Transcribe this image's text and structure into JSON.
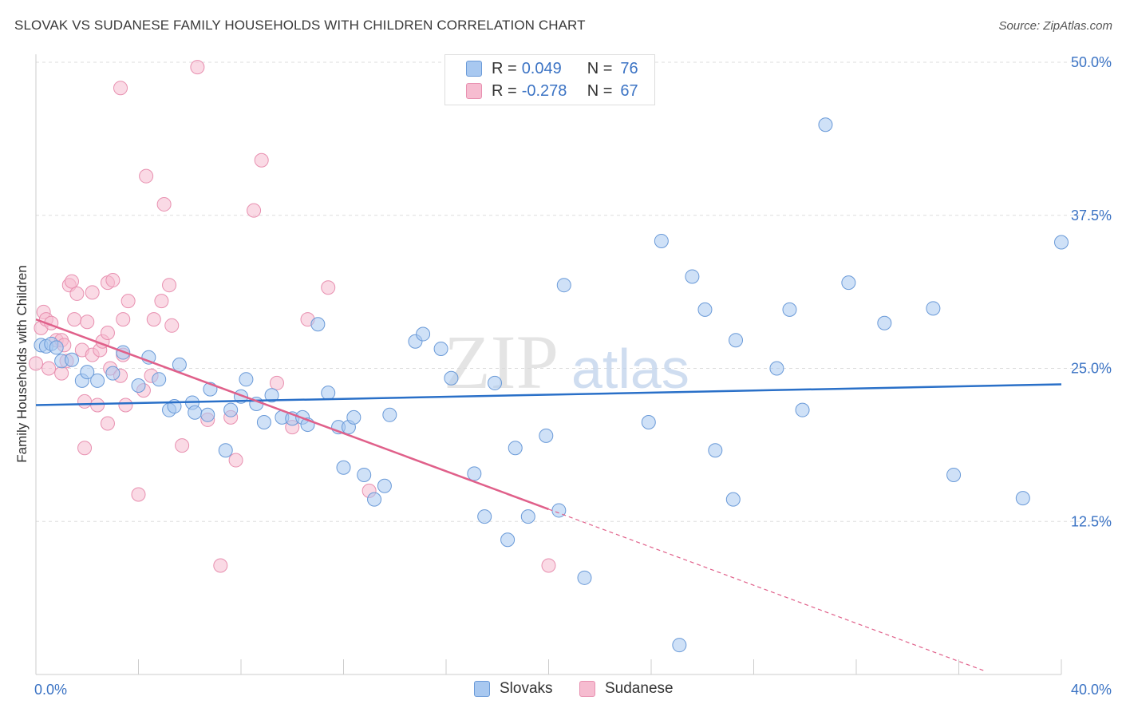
{
  "title": "SLOVAK VS SUDANESE FAMILY HOUSEHOLDS WITH CHILDREN CORRELATION CHART",
  "source": "Source: ZipAtlas.com",
  "watermark": {
    "zip": "ZIP",
    "atlas": "atlas"
  },
  "legend": {
    "slovaks": {
      "r_label": "R =",
      "r_value": "0.049",
      "n_label": "N =",
      "n_value": "76"
    },
    "sudanese": {
      "r_label": "R =",
      "r_value": "-0.278",
      "n_label": "N =",
      "n_value": "67"
    }
  },
  "bottom_legend": {
    "slovaks": "Slovaks",
    "sudanese": "Sudanese"
  },
  "colors": {
    "slovaks_fill": "#a8c8f0",
    "slovaks_stroke": "#6a9ad8",
    "slovaks_line": "#2a70c8",
    "sudanese_fill": "#f6bcd0",
    "sudanese_stroke": "#e890b0",
    "sudanese_line": "#e0608a",
    "grid": "#dddddd",
    "axis_label": "#3b73c4"
  },
  "chart_data": {
    "type": "scatter",
    "title": "SLOVAK VS SUDANESE FAMILY HOUSEHOLDS WITH CHILDREN CORRELATION CHART",
    "xlabel": "",
    "ylabel": "Family Households with Children",
    "xlim": [
      0,
      40
    ],
    "ylim": [
      0,
      50
    ],
    "x_tick_labels": [
      "0.0%",
      "40.0%"
    ],
    "y_ticks": [
      12.5,
      25.0,
      37.5,
      50.0
    ],
    "y_tick_labels": [
      "12.5%",
      "25.0%",
      "37.5%",
      "50.0%"
    ],
    "grid": true,
    "legend_position": "top-center",
    "series": [
      {
        "name": "Slovaks",
        "r": 0.049,
        "n": 76,
        "trend": {
          "x": [
            0,
            40
          ],
          "y": [
            22.0,
            23.7
          ],
          "dashed_from": null
        },
        "points": [
          [
            0.2,
            26.9
          ],
          [
            0.4,
            26.8
          ],
          [
            0.6,
            27.0
          ],
          [
            0.8,
            26.7
          ],
          [
            1.0,
            25.6
          ],
          [
            1.4,
            25.7
          ],
          [
            1.8,
            24.0
          ],
          [
            2.0,
            24.7
          ],
          [
            2.4,
            24.0
          ],
          [
            3.0,
            24.6
          ],
          [
            3.4,
            26.3
          ],
          [
            4.0,
            23.6
          ],
          [
            4.4,
            25.9
          ],
          [
            4.8,
            24.1
          ],
          [
            5.2,
            21.6
          ],
          [
            5.4,
            21.9
          ],
          [
            5.6,
            25.3
          ],
          [
            6.1,
            22.2
          ],
          [
            6.2,
            21.4
          ],
          [
            6.7,
            21.2
          ],
          [
            6.8,
            23.3
          ],
          [
            7.4,
            18.3
          ],
          [
            7.6,
            21.6
          ],
          [
            8.0,
            22.7
          ],
          [
            8.2,
            24.1
          ],
          [
            8.6,
            22.1
          ],
          [
            8.9,
            20.6
          ],
          [
            9.2,
            22.8
          ],
          [
            9.6,
            21.0
          ],
          [
            10.0,
            20.9
          ],
          [
            10.4,
            21.0
          ],
          [
            10.6,
            20.4
          ],
          [
            11.0,
            28.6
          ],
          [
            11.4,
            23.0
          ],
          [
            11.8,
            20.2
          ],
          [
            12.0,
            16.9
          ],
          [
            12.2,
            20.2
          ],
          [
            12.4,
            21.0
          ],
          [
            12.8,
            16.3
          ],
          [
            13.2,
            14.3
          ],
          [
            13.6,
            15.4
          ],
          [
            13.8,
            21.2
          ],
          [
            14.8,
            27.2
          ],
          [
            15.1,
            27.8
          ],
          [
            15.8,
            26.6
          ],
          [
            16.2,
            24.2
          ],
          [
            17.1,
            16.4
          ],
          [
            17.5,
            12.9
          ],
          [
            17.9,
            23.8
          ],
          [
            18.4,
            11.0
          ],
          [
            18.7,
            18.5
          ],
          [
            19.2,
            12.9
          ],
          [
            19.9,
            19.5
          ],
          [
            20.4,
            13.4
          ],
          [
            20.6,
            31.8
          ],
          [
            21.4,
            7.9
          ],
          [
            23.9,
            20.6
          ],
          [
            24.4,
            35.4
          ],
          [
            25.1,
            2.4
          ],
          [
            25.6,
            32.5
          ],
          [
            26.1,
            29.8
          ],
          [
            26.5,
            18.3
          ],
          [
            27.2,
            14.3
          ],
          [
            27.3,
            27.3
          ],
          [
            28.9,
            25.0
          ],
          [
            29.4,
            29.8
          ],
          [
            29.9,
            21.6
          ],
          [
            30.8,
            44.9
          ],
          [
            31.7,
            32.0
          ],
          [
            33.1,
            28.7
          ],
          [
            35.0,
            29.9
          ],
          [
            35.8,
            16.3
          ],
          [
            38.5,
            14.4
          ],
          [
            40.0,
            35.3
          ]
        ]
      },
      {
        "name": "Sudanese",
        "r": -0.278,
        "n": 67,
        "trend": {
          "x": [
            0,
            20
          ],
          "y": [
            29.0,
            13.5
          ],
          "dashed_to": [
            37,
            0.3
          ]
        },
        "points": [
          [
            0.0,
            25.4
          ],
          [
            0.2,
            28.3
          ],
          [
            0.3,
            29.6
          ],
          [
            0.4,
            29.0
          ],
          [
            0.5,
            25.0
          ],
          [
            0.6,
            28.7
          ],
          [
            0.8,
            27.3
          ],
          [
            1.0,
            27.3
          ],
          [
            1.0,
            24.6
          ],
          [
            1.1,
            26.9
          ],
          [
            1.2,
            25.6
          ],
          [
            1.3,
            31.8
          ],
          [
            1.4,
            32.1
          ],
          [
            1.5,
            29.0
          ],
          [
            1.6,
            31.1
          ],
          [
            1.8,
            26.5
          ],
          [
            1.9,
            22.3
          ],
          [
            1.9,
            18.5
          ],
          [
            2.0,
            28.8
          ],
          [
            2.2,
            26.1
          ],
          [
            2.2,
            31.2
          ],
          [
            2.4,
            22.0
          ],
          [
            2.5,
            26.5
          ],
          [
            2.6,
            27.2
          ],
          [
            2.8,
            32.0
          ],
          [
            2.8,
            20.5
          ],
          [
            2.8,
            27.9
          ],
          [
            2.9,
            25.0
          ],
          [
            3.0,
            32.2
          ],
          [
            3.3,
            47.9
          ],
          [
            3.3,
            24.4
          ],
          [
            3.4,
            29.0
          ],
          [
            3.4,
            26.1
          ],
          [
            3.5,
            22.0
          ],
          [
            3.6,
            30.5
          ],
          [
            4.0,
            14.7
          ],
          [
            4.2,
            23.2
          ],
          [
            4.3,
            40.7
          ],
          [
            4.5,
            24.4
          ],
          [
            4.6,
            29.0
          ],
          [
            4.9,
            30.5
          ],
          [
            5.0,
            38.4
          ],
          [
            5.2,
            31.8
          ],
          [
            5.3,
            28.5
          ],
          [
            5.7,
            18.7
          ],
          [
            6.3,
            49.6
          ],
          [
            6.7,
            20.8
          ],
          [
            7.2,
            8.9
          ],
          [
            7.6,
            21.0
          ],
          [
            7.8,
            17.5
          ],
          [
            8.5,
            37.9
          ],
          [
            8.8,
            42.0
          ],
          [
            9.4,
            23.8
          ],
          [
            10.0,
            20.2
          ],
          [
            10.6,
            29.0
          ],
          [
            11.4,
            31.6
          ],
          [
            13.0,
            15.0
          ],
          [
            20.0,
            8.9
          ]
        ]
      }
    ]
  }
}
